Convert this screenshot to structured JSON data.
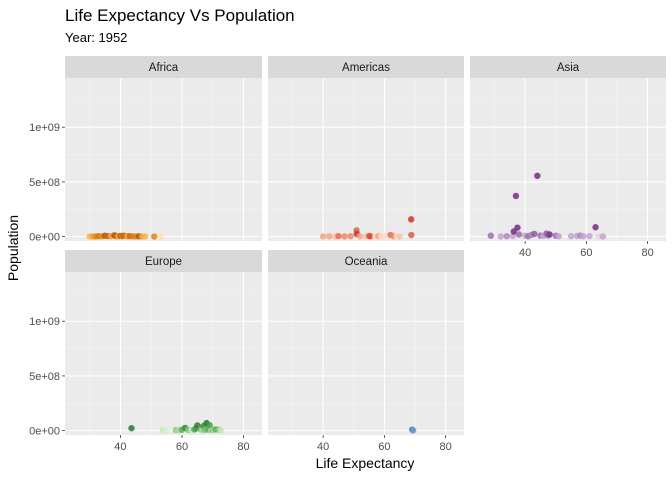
{
  "chart_data": {
    "type": "scatter",
    "title": "Life Expectancy Vs Population",
    "subtitle": "Year: 1952",
    "xlabel": "Life Expectancy",
    "ylabel": "Population",
    "xlim": [
      22,
      86
    ],
    "ylim": [
      -40000000,
      1450000000
    ],
    "x_ticks": [
      40,
      60,
      80
    ],
    "x_tick_labels": [
      "40",
      "60",
      "80"
    ],
    "y_ticks": [
      0,
      500000000,
      1000000000
    ],
    "y_tick_labels": [
      "0e+00",
      "5e+08",
      "1e+09"
    ],
    "grid": true,
    "facets": [
      {
        "name": "Africa",
        "points": [
          {
            "x": 30,
            "y": 2,
            "c": "#f7b54f"
          },
          {
            "x": 31,
            "y": 1,
            "c": "#f2a23b"
          },
          {
            "x": 32,
            "y": 2,
            "c": "#e08214"
          },
          {
            "x": 33,
            "y": 4,
            "c": "#d9760f"
          },
          {
            "x": 34,
            "y": 3,
            "c": "#e68a1c"
          },
          {
            "x": 35,
            "y": 8,
            "c": "#b35806"
          },
          {
            "x": 36,
            "y": 5,
            "c": "#cc6a0a"
          },
          {
            "x": 37,
            "y": 3,
            "c": "#f0a040"
          },
          {
            "x": 38,
            "y": 12,
            "c": "#c06008"
          },
          {
            "x": 38.5,
            "y": 7,
            "c": "#b35806"
          },
          {
            "x": 39,
            "y": 4,
            "c": "#d97a10"
          },
          {
            "x": 39.5,
            "y": 2,
            "c": "#fdb863"
          },
          {
            "x": 40,
            "y": 6,
            "c": "#b35806"
          },
          {
            "x": 40.5,
            "y": 3,
            "c": "#e08214"
          },
          {
            "x": 41,
            "y": 9,
            "c": "#c56a0c"
          },
          {
            "x": 42,
            "y": 4,
            "c": "#e08214"
          },
          {
            "x": 42.5,
            "y": 1,
            "c": "#fdb863"
          },
          {
            "x": 43,
            "y": 5,
            "c": "#c56a0c"
          },
          {
            "x": 44,
            "y": 3,
            "c": "#d9760f"
          },
          {
            "x": 45,
            "y": 2,
            "c": "#e08214"
          },
          {
            "x": 46,
            "y": 3,
            "c": "#b35806"
          },
          {
            "x": 47,
            "y": 1,
            "c": "#f0a040"
          },
          {
            "x": 48,
            "y": 2,
            "c": "#f7b54f"
          },
          {
            "x": 51,
            "y": 1,
            "c": "#e67e22"
          },
          {
            "x": 53,
            "y": 1,
            "c": "#fde0a8"
          }
        ]
      },
      {
        "name": "Americas",
        "points": [
          {
            "x": 40,
            "y": 2,
            "c": "#f4a582"
          },
          {
            "x": 42,
            "y": 3,
            "c": "#f4a582"
          },
          {
            "x": 44,
            "y": 1,
            "c": "#f7c4a8"
          },
          {
            "x": 45,
            "y": 5,
            "c": "#e66b5b"
          },
          {
            "x": 47,
            "y": 2,
            "c": "#ef8a62"
          },
          {
            "x": 49,
            "y": 4,
            "c": "#ef8a62"
          },
          {
            "x": 50.9,
            "y": 56.6,
            "c": "#d6604d"
          },
          {
            "x": 51,
            "y": 24,
            "c": "#c0392b"
          },
          {
            "x": 52,
            "y": 3,
            "c": "#f4a582"
          },
          {
            "x": 54,
            "y": 2,
            "c": "#f7c4a8"
          },
          {
            "x": 55,
            "y": 6,
            "c": "#d6604d"
          },
          {
            "x": 55.5,
            "y": 3,
            "c": "#e34a33"
          },
          {
            "x": 57,
            "y": 2,
            "c": "#fddbc7"
          },
          {
            "x": 58,
            "y": 4,
            "c": "#f4a582"
          },
          {
            "x": 59,
            "y": 1,
            "c": "#fddbc7"
          },
          {
            "x": 60,
            "y": 2,
            "c": "#fddbc7"
          },
          {
            "x": 62,
            "y": 15,
            "c": "#e66b5b"
          },
          {
            "x": 63,
            "y": 3,
            "c": "#ef8a62"
          },
          {
            "x": 64,
            "y": 2,
            "c": "#fddbc7"
          },
          {
            "x": 65,
            "y": 1,
            "c": "#f7c4a8"
          },
          {
            "x": 68.8,
            "y": 14.8,
            "c": "#d6604d"
          },
          {
            "x": 68.75,
            "y": 157.6,
            "c": "#d73027"
          }
        ]
      },
      {
        "name": "Asia",
        "points": [
          {
            "x": 28.8,
            "y": 8.4,
            "c": "#9e6bb5"
          },
          {
            "x": 32,
            "y": 2,
            "c": "#c2a5cf"
          },
          {
            "x": 34,
            "y": 4,
            "c": "#b085c0"
          },
          {
            "x": 36,
            "y": 6,
            "c": "#c2a5cf"
          },
          {
            "x": 36.3,
            "y": 46.9,
            "c": "#762a83"
          },
          {
            "x": 37,
            "y": 372,
            "c": "#762a83"
          },
          {
            "x": 37.5,
            "y": 82,
            "c": "#762a83"
          },
          {
            "x": 38,
            "y": 20,
            "c": "#9970ab"
          },
          {
            "x": 40,
            "y": 8,
            "c": "#c2a5cf"
          },
          {
            "x": 41,
            "y": 4,
            "c": "#9970ab"
          },
          {
            "x": 42,
            "y": 15,
            "c": "#a884b8"
          },
          {
            "x": 43,
            "y": 25,
            "c": "#8e5aa3"
          },
          {
            "x": 44,
            "y": 556,
            "c": "#762a83"
          },
          {
            "x": 45,
            "y": 10,
            "c": "#9970ab"
          },
          {
            "x": 46,
            "y": 6,
            "c": "#c2a5cf"
          },
          {
            "x": 47,
            "y": 28,
            "c": "#8e5aa3"
          },
          {
            "x": 47.5,
            "y": 12,
            "c": "#9970ab"
          },
          {
            "x": 48,
            "y": 20,
            "c": "#7b3294"
          },
          {
            "x": 50,
            "y": 8,
            "c": "#9970ab"
          },
          {
            "x": 51,
            "y": 3,
            "c": "#c2a5cf"
          },
          {
            "x": 55,
            "y": 4,
            "c": "#c2a5cf"
          },
          {
            "x": 57,
            "y": 6,
            "c": "#c2a5cf"
          },
          {
            "x": 58,
            "y": 10,
            "c": "#b085c0"
          },
          {
            "x": 59,
            "y": 3,
            "c": "#c2a5cf"
          },
          {
            "x": 61,
            "y": 5,
            "c": "#c2a5cf"
          },
          {
            "x": 63,
            "y": 86,
            "c": "#762a83"
          },
          {
            "x": 64,
            "y": 2,
            "c": "#e7d4e8"
          },
          {
            "x": 65.4,
            "y": 1,
            "c": "#c2a5cf"
          }
        ]
      },
      {
        "name": "Europe",
        "points": [
          {
            "x": 43.6,
            "y": 22,
            "c": "#2d7a2d"
          },
          {
            "x": 53.8,
            "y": 2,
            "c": "#c7e9c0"
          },
          {
            "x": 55,
            "y": 1,
            "c": "#d9f0d3"
          },
          {
            "x": 58,
            "y": 5,
            "c": "#8fce6e"
          },
          {
            "x": 59,
            "y": 3,
            "c": "#a6dba0"
          },
          {
            "x": 60,
            "y": 8,
            "c": "#5aae61"
          },
          {
            "x": 61,
            "y": 25,
            "c": "#3c8d2f"
          },
          {
            "x": 62,
            "y": 7,
            "c": "#7fbf7b"
          },
          {
            "x": 63,
            "y": 2,
            "c": "#c7e9c0"
          },
          {
            "x": 64,
            "y": 10,
            "c": "#5aae61"
          },
          {
            "x": 64.5,
            "y": 18,
            "c": "#4a9e3f"
          },
          {
            "x": 65,
            "y": 47,
            "c": "#2d7a2d"
          },
          {
            "x": 66,
            "y": 15,
            "c": "#5aae61"
          },
          {
            "x": 66.5,
            "y": 4,
            "c": "#a6dba0"
          },
          {
            "x": 67,
            "y": 42,
            "c": "#3c8d2f"
          },
          {
            "x": 67.5,
            "y": 7,
            "c": "#7fbf7b"
          },
          {
            "x": 68,
            "y": 69,
            "c": "#1b7837"
          },
          {
            "x": 68.5,
            "y": 10,
            "c": "#5aae61"
          },
          {
            "x": 69,
            "y": 50,
            "c": "#4a9e3f"
          },
          {
            "x": 69.5,
            "y": 3,
            "c": "#a6dba0"
          },
          {
            "x": 70,
            "y": 8,
            "c": "#7fbf7b"
          },
          {
            "x": 70.5,
            "y": 5,
            "c": "#a6dba0"
          },
          {
            "x": 71,
            "y": 12,
            "c": "#5aae61"
          },
          {
            "x": 72,
            "y": 7,
            "c": "#8fce6e"
          },
          {
            "x": 72.7,
            "y": 3,
            "c": "#c7e9c0"
          }
        ]
      },
      {
        "name": "Oceania",
        "points": [
          {
            "x": 69.1,
            "y": 8.7,
            "c": "#3a6fb0"
          },
          {
            "x": 69.4,
            "y": 1.9,
            "c": "#6e9bd1"
          }
        ]
      }
    ]
  }
}
